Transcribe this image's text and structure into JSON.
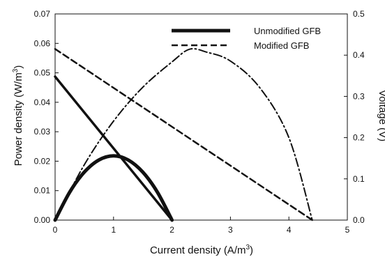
{
  "chart_data": {
    "type": "line",
    "xlabel": "Current density (A/m³)",
    "ylabel_left": "Power density (W/m³)",
    "ylabel_right": "Voltage (V)",
    "xlim": [
      0,
      5
    ],
    "ylim_left": [
      0,
      0.07
    ],
    "ylim_right": [
      0,
      0.5
    ],
    "x_ticks": [
      0,
      1,
      2,
      3,
      4,
      5
    ],
    "y_left_ticks": [
      "0.00",
      "0.01",
      "0.02",
      "0.03",
      "0.04",
      "0.05",
      "0.06",
      "0.07"
    ],
    "y_right_ticks": [
      "0.0",
      "0.1",
      "0.2",
      "0.3",
      "0.4",
      "0.5"
    ],
    "grid": false,
    "legend_position": "top-right",
    "legend": [
      {
        "label": "Unmodified GFB",
        "style": "solid"
      },
      {
        "label": "Modified GFB",
        "style": "dashed"
      }
    ],
    "series": [
      {
        "legend": "Unmodified GFB",
        "kind": "voltage",
        "axis": "right",
        "style": "solid",
        "x": [
          0,
          2
        ],
        "y": [
          0.348,
          0.0
        ]
      },
      {
        "legend": "Unmodified GFB",
        "kind": "power",
        "axis": "left",
        "style": "solid",
        "x": [
          0,
          0.25,
          0.5,
          0.75,
          1.0,
          1.25,
          1.5,
          1.75,
          2.0
        ],
        "y": [
          0,
          0.0095,
          0.0163,
          0.0204,
          0.0218,
          0.0204,
          0.0163,
          0.0095,
          0
        ]
      },
      {
        "legend": "Modified GFB",
        "kind": "voltage",
        "axis": "right",
        "style": "dashed",
        "x": [
          0,
          4.4
        ],
        "y": [
          0.415,
          0.0
        ]
      },
      {
        "legend": "Modified GFB",
        "kind": "power",
        "axis": "left",
        "style": "dash-dot",
        "x": [
          0,
          0.5,
          1.0,
          1.5,
          2.0,
          2.3,
          2.6,
          3.0,
          3.5,
          4.0,
          4.4
        ],
        "y": [
          0,
          0.0188,
          0.0336,
          0.0451,
          0.0537,
          0.058,
          0.057,
          0.054,
          0.045,
          0.028,
          0
        ]
      }
    ]
  }
}
